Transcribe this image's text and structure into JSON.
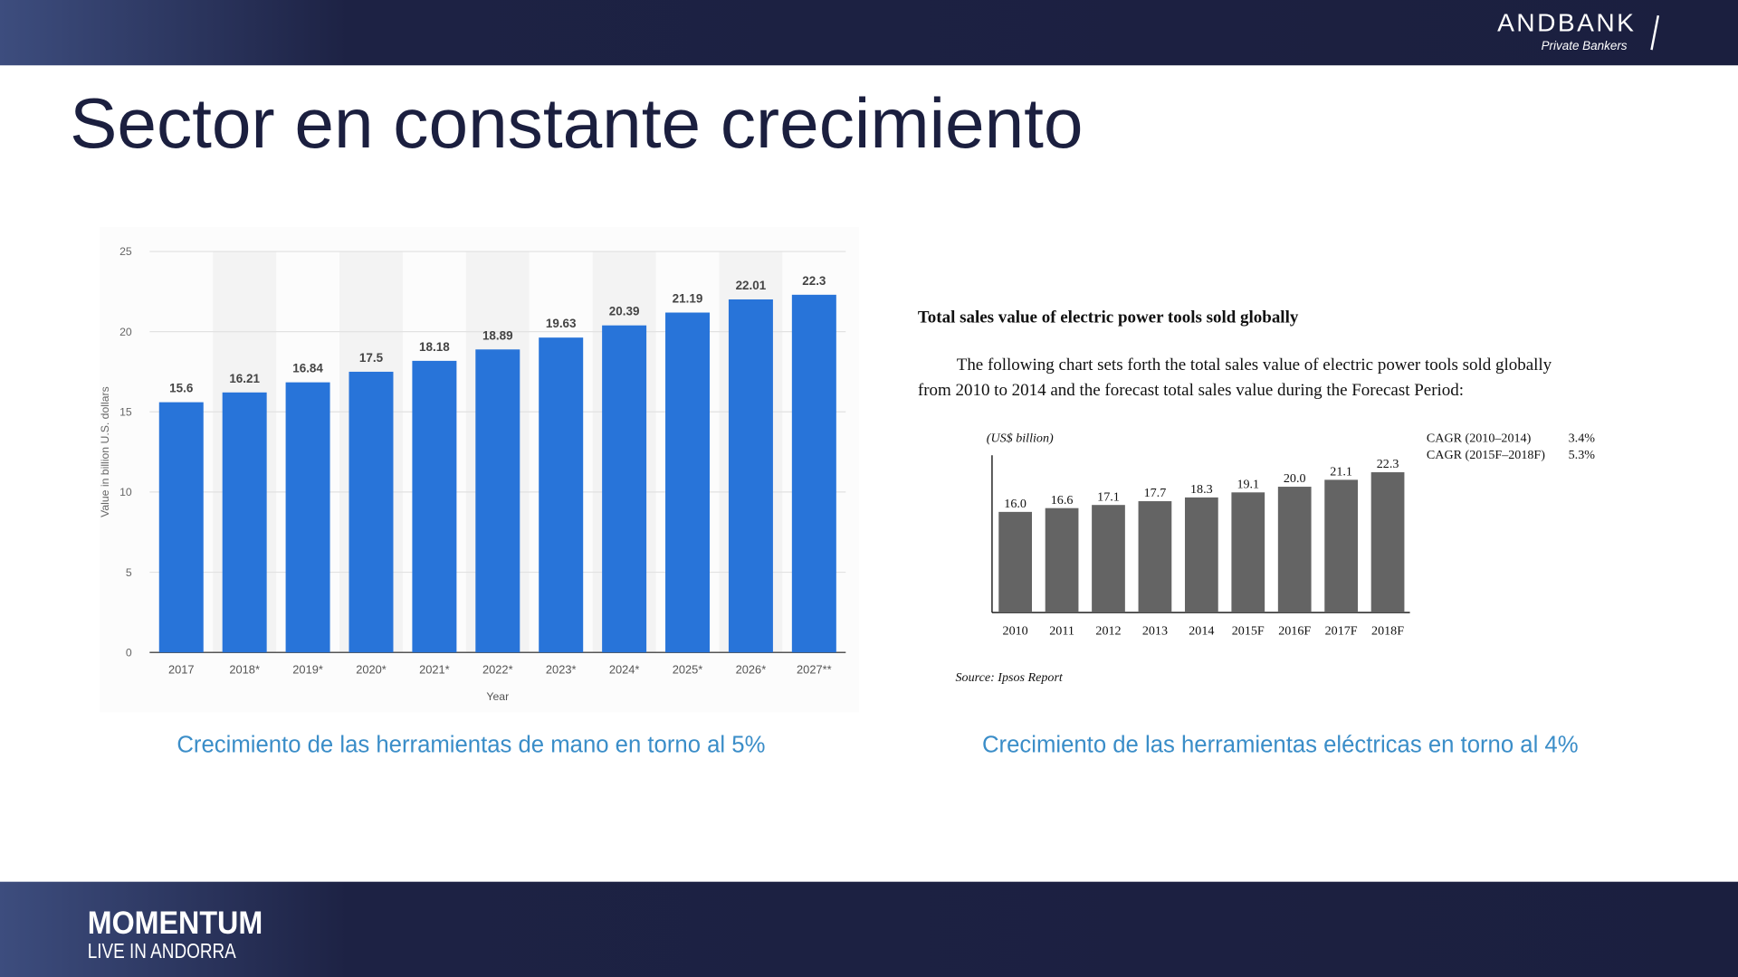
{
  "header": {
    "brand": "ANDBANK",
    "tagline": "Private Bankers"
  },
  "title": "Sector en constante crecimiento",
  "captions": [
    "Crecimiento de las herramientas de mano en torno al 5%",
    "Crecimiento de las herramientas eléctricas en torno al 4%"
  ],
  "footer": {
    "event": "MOMENTUM",
    "location": "LIVE IN ANDORRA"
  },
  "chart_data": [
    {
      "type": "bar",
      "categories": [
        "2017",
        "2018*",
        "2019*",
        "2020*",
        "2021*",
        "2022*",
        "2023*",
        "2024*",
        "2025*",
        "2026*",
        "2027**"
      ],
      "values": [
        15.6,
        16.21,
        16.84,
        17.5,
        18.18,
        18.89,
        19.63,
        20.39,
        21.19,
        22.01,
        22.3
      ],
      "color": "#2874d9",
      "ylim": [
        0,
        25
      ],
      "yticks": [
        0,
        5,
        10,
        15,
        20,
        25
      ],
      "grid": true,
      "xlabel": "Year",
      "ylabel": "Value in billion U.S. dollars"
    },
    {
      "type": "bar",
      "title": "Total sales value of electric power tools sold globally",
      "description": [
        "The following chart sets forth the total sales value of electric power tools sold globally",
        "from 2010 to 2014 and the forecast total sales value during the Forecast Period:"
      ],
      "unit_label": "(US$ billion)",
      "categories": [
        "2010",
        "2011",
        "2012",
        "2013",
        "2014",
        "2015F",
        "2016F",
        "2017F",
        "2018F"
      ],
      "values": [
        16.0,
        16.6,
        17.1,
        17.7,
        18.3,
        19.1,
        20.0,
        21.1,
        22.3
      ],
      "value_labels": [
        "16.0",
        "16.6",
        "17.1",
        "17.7",
        "18.3",
        "19.1",
        "20.0",
        "21.1",
        "22.3"
      ],
      "color": "#646464",
      "ylim": [
        0,
        25
      ],
      "grid": false,
      "annotations": [
        {
          "label": "CAGR (2010–2014)",
          "value": "3.4%"
        },
        {
          "label": "CAGR (2015F–2018F)",
          "value": "5.3%"
        }
      ],
      "source": "Source: Ipsos Report"
    }
  ]
}
